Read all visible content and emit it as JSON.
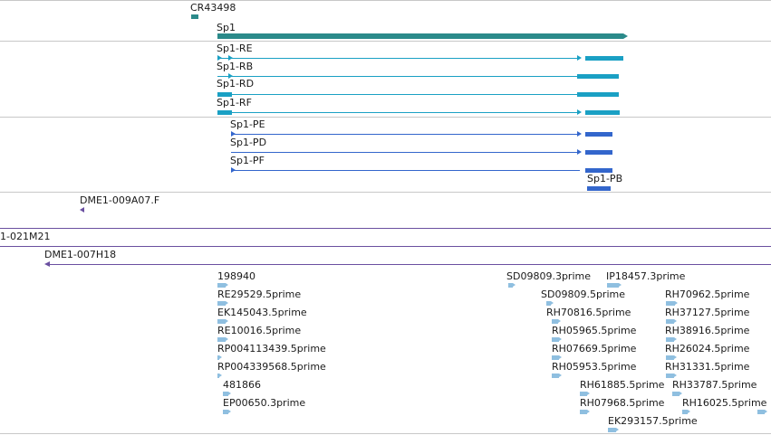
{
  "colors": {
    "gene": "#2b8a8a",
    "transcript_bright": "#1aa0c4",
    "transcript_blue": "#3366cc",
    "clone": "#6a4fa0",
    "est": "#8fbfe0",
    "divider": "#c8c8c8"
  },
  "gene_track": {
    "ncrna_label": "CR43498",
    "gene_label": "Sp1"
  },
  "transcripts_a": [
    "Sp1-RE",
    "Sp1-RB",
    "Sp1-RD",
    "Sp1-RF"
  ],
  "transcripts_b": [
    "Sp1-PE",
    "Sp1-PD",
    "Sp1-PF",
    "Sp1-PB"
  ],
  "clones": [
    "DME1-009A07.F",
    "1-021M21",
    "DME1-007H18"
  ],
  "ests": [
    "198940",
    "SD09809.3prime",
    "IP18457.3prime",
    "RE29529.5prime",
    "SD09809.5prime",
    "RH70962.5prime",
    "EK145043.5prime",
    "RH70816.5prime",
    "RH37127.5prime",
    "RE10016.5prime",
    "RH05965.5prime",
    "RH38916.5prime",
    "RP004113439.5prime",
    "RH07669.5prime",
    "RH26024.5prime",
    "RP004339568.5prime",
    "RH05953.5prime",
    "RH31331.5prime",
    "481866",
    "RH61885.5prime",
    "RH33787.5prime",
    "EP00650.3prime",
    "RH07968.5prime",
    "RH16025.5prime",
    "EK293157.5prime"
  ]
}
